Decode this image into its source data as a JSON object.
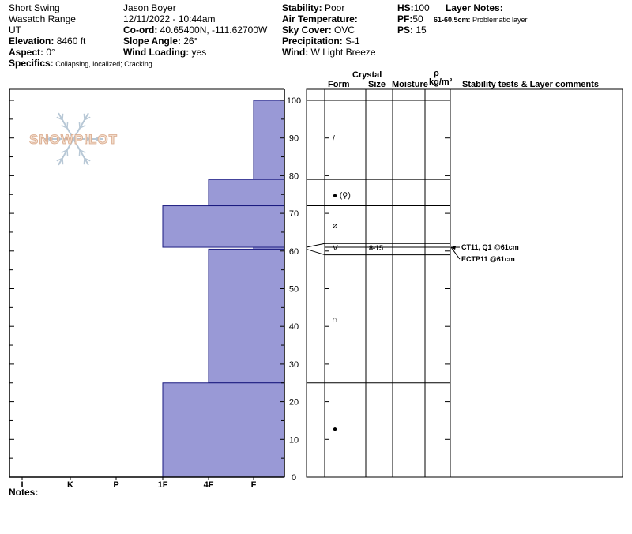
{
  "header": {
    "col1": [
      "Short Swing",
      "Wasatch Range",
      "UT"
    ],
    "elevation_label": "Elevation:",
    "elevation_value": " 8460 ft",
    "aspect_label": "Aspect:",
    "aspect_value": " 0°",
    "specifics_label": "Specifics:",
    "specifics_value": " Collapsing, localized; Cracking",
    "observer": "Jason Boyer",
    "datetime": "12/11/2022 - 10:44am",
    "coord_label": "Co-ord:",
    "coord_value": " 40.65400N, -111.62700W",
    "slope_label": "Slope Angle:",
    "slope_value": " 26°",
    "wind_loading_label": "Wind Loading:",
    "wind_loading_value": " yes",
    "stability_label": "Stability:",
    "stability_value": " Poor",
    "air_temp_label": "Air Temperature:",
    "air_temp_value": "",
    "sky_label": "Sky Cover:",
    "sky_value": " OVC",
    "precip_label": "Precipitation:",
    "precip_value": " S-1",
    "wind_label": "Wind:",
    "wind_value": "  W Light Breeze",
    "hs_label": "HS:",
    "hs_value": "100",
    "pf_label": "PF:",
    "pf_value": "50",
    "ps_label": "PS:",
    "ps_value": " 15",
    "layer_notes_label": "Layer Notes:",
    "layer_note_range": "61-60.5cm:",
    "layer_note_text": " Problematic layer"
  },
  "columns": {
    "form": "Form",
    "crystal": "Crystal",
    "size": "Size",
    "moisture": "Moisture",
    "rho": "ρ",
    "density_unit": "kg/m³",
    "stability": "Stability tests & Layer comments"
  },
  "notes_label": "Notes:",
  "logo_text": "SNOWPILOT",
  "chart_data": {
    "type": "bar",
    "title": "",
    "ylabel": "",
    "xlabel": "",
    "ylim": [
      0,
      100
    ],
    "yticks": [
      0,
      10,
      20,
      30,
      40,
      50,
      60,
      70,
      80,
      90,
      100
    ],
    "hardness_categories": [
      "I",
      "K",
      "P",
      "1F",
      "4F",
      "F"
    ],
    "layers": [
      {
        "bottom": 79,
        "top": 100,
        "hardness": "F"
      },
      {
        "bottom": 72,
        "top": 79,
        "hardness": "4F"
      },
      {
        "bottom": 61,
        "top": 72,
        "hardness": "1F"
      },
      {
        "bottom": 60.5,
        "top": 61,
        "hardness": "F"
      },
      {
        "bottom": 25,
        "top": 60.5,
        "hardness": "4F"
      },
      {
        "bottom": 0,
        "top": 25,
        "hardness": "1F"
      }
    ],
    "layer_boundaries": [
      25,
      59,
      61,
      62,
      72,
      79,
      100
    ],
    "grain_forms": [
      {
        "height": 90,
        "symbol": "/"
      },
      {
        "height": 75,
        "symbol": "● (⚲)"
      },
      {
        "height": 67,
        "symbol": "⌀"
      },
      {
        "height": 61,
        "symbol": "V"
      },
      {
        "height": 42,
        "symbol": "⌂"
      },
      {
        "height": 13,
        "symbol": "●"
      }
    ],
    "crystal_size": [
      {
        "height": 61,
        "value": "8-15"
      }
    ],
    "stability_tests": [
      {
        "height": 61,
        "text": "CT11, Q1 @61cm"
      },
      {
        "height": 61,
        "text": "ECTP11 @61cm"
      }
    ]
  }
}
